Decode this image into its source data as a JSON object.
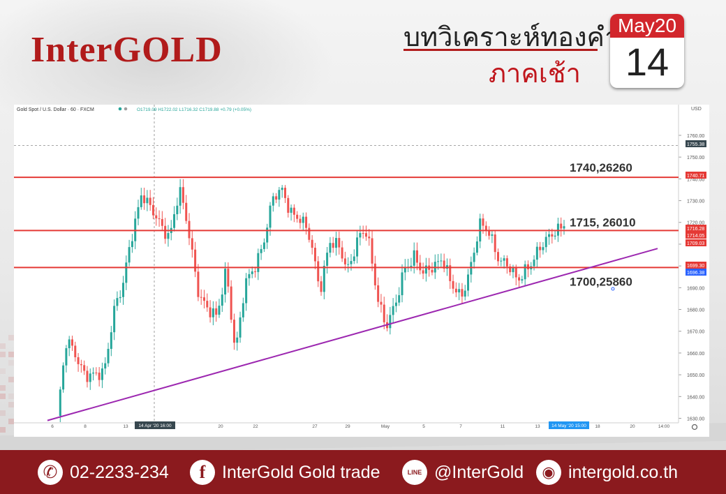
{
  "header": {
    "brand": "InterGOLD",
    "title_line1": "บทวิเคราะห์ทองคำ",
    "title_line2": "ภาคเช้า",
    "calendar_month": "May20",
    "calendar_day": "14"
  },
  "chart_data": {
    "type": "candlestick",
    "symbol_info": "Gold Spot / U.S. Dollar · 60 · FXCM",
    "ohlc_text": "O1719.09 H1722.02 L1716.32 C1719.88 +0.79 (+0.05%)",
    "currency": "USD",
    "ylim": [
      1626,
      1768
    ],
    "y_ticks": [
      1630,
      1640,
      1650,
      1660,
      1670,
      1680,
      1690,
      1700,
      1710,
      1720,
      1730,
      1740,
      1750,
      1760
    ],
    "x_ticks": [
      "6",
      "8",
      "13",
      "14 Apr '20  16:00",
      "20",
      "22",
      "27",
      "29",
      "May",
      "5",
      "7",
      "11",
      "13",
      "14 May '20  15:00",
      "18",
      "20",
      "14:00"
    ],
    "close_path": [
      1630,
      1665,
      1660,
      1650,
      1648,
      1652,
      1680,
      1690,
      1715,
      1735,
      1725,
      1718,
      1715,
      1735,
      1715,
      1690,
      1680,
      1675,
      1700,
      1660,
      1690,
      1700,
      1712,
      1730,
      1735,
      1725,
      1720,
      1712,
      1690,
      1710,
      1708,
      1700,
      1712,
      1715,
      1690,
      1672,
      1680,
      1700,
      1705,
      1695,
      1700,
      1705,
      1690,
      1685,
      1700,
      1718,
      1715,
      1705,
      1700,
      1692,
      1700,
      1705,
      1710,
      1717,
      1719.88
    ],
    "horizontal_levels": [
      {
        "price": 1740.71,
        "label": "1740,26260"
      },
      {
        "price": 1716.28,
        "label": "1715, 26010"
      },
      {
        "price": 1699.3,
        "label": "1700,25860"
      }
    ],
    "price_tags": [
      {
        "value": "1755.38",
        "color": "#37474f"
      },
      {
        "value": "1740.71",
        "color": "#e53935"
      },
      {
        "value": "1716.28",
        "color": "#e53935"
      },
      {
        "value": "1714.05",
        "color": "#e53935"
      },
      {
        "value": "1709.03",
        "color": "#e53935"
      },
      {
        "value": "1699.30",
        "color": "#e53935"
      },
      {
        "value": "1696.38",
        "color": "#2962ff"
      }
    ],
    "trendline": {
      "from": [
        "6",
        1629
      ],
      "to": [
        "20",
        1708
      ],
      "color": "#9c27b0"
    },
    "colors": {
      "up": "#26a69a",
      "down": "#ef5350",
      "level": "#e53935"
    }
  },
  "footer": {
    "phone": "02-2233-234",
    "facebook": "InterGold Gold trade",
    "line": "@InterGold",
    "website": "intergold.co.th"
  }
}
